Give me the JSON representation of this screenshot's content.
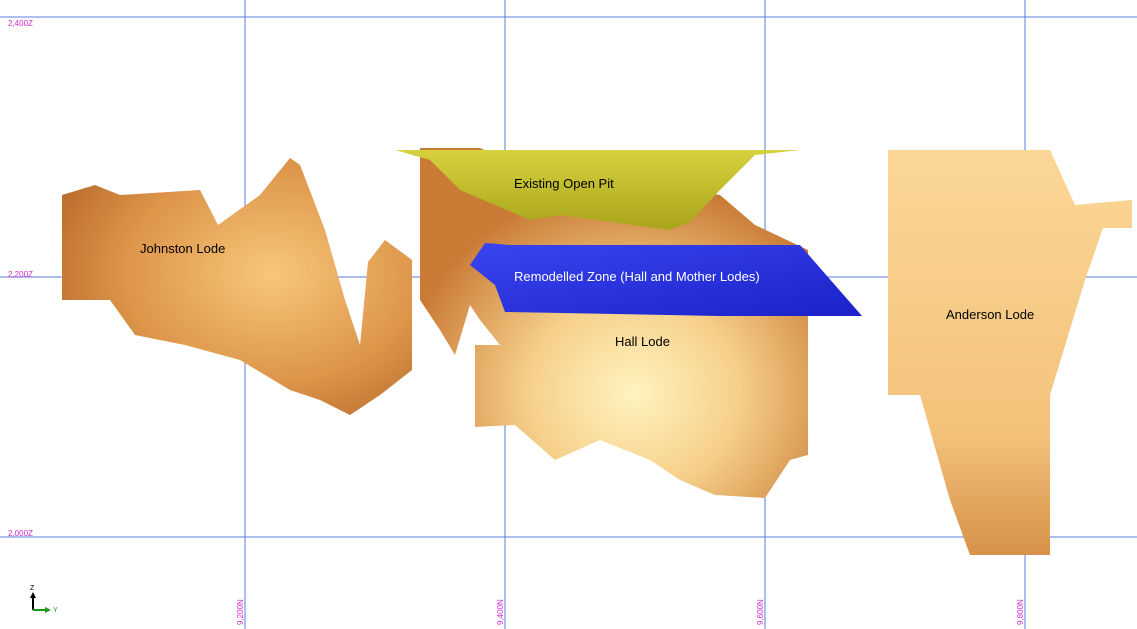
{
  "grid": {
    "elevation_labels": [
      "2,400Z",
      "2,200Z",
      "2,000Z"
    ],
    "northing_labels": [
      "9,200N",
      "9,400N",
      "9,600N",
      "9,800N"
    ]
  },
  "labels": [
    "Johnston Lode",
    "Existing Open Pit",
    "Remodelled Zone (Hall and Mother Lodes)",
    "Hall Lode",
    "Anderson Lode"
  ],
  "axis_indicator": {
    "z": "Z",
    "y": "Y"
  }
}
